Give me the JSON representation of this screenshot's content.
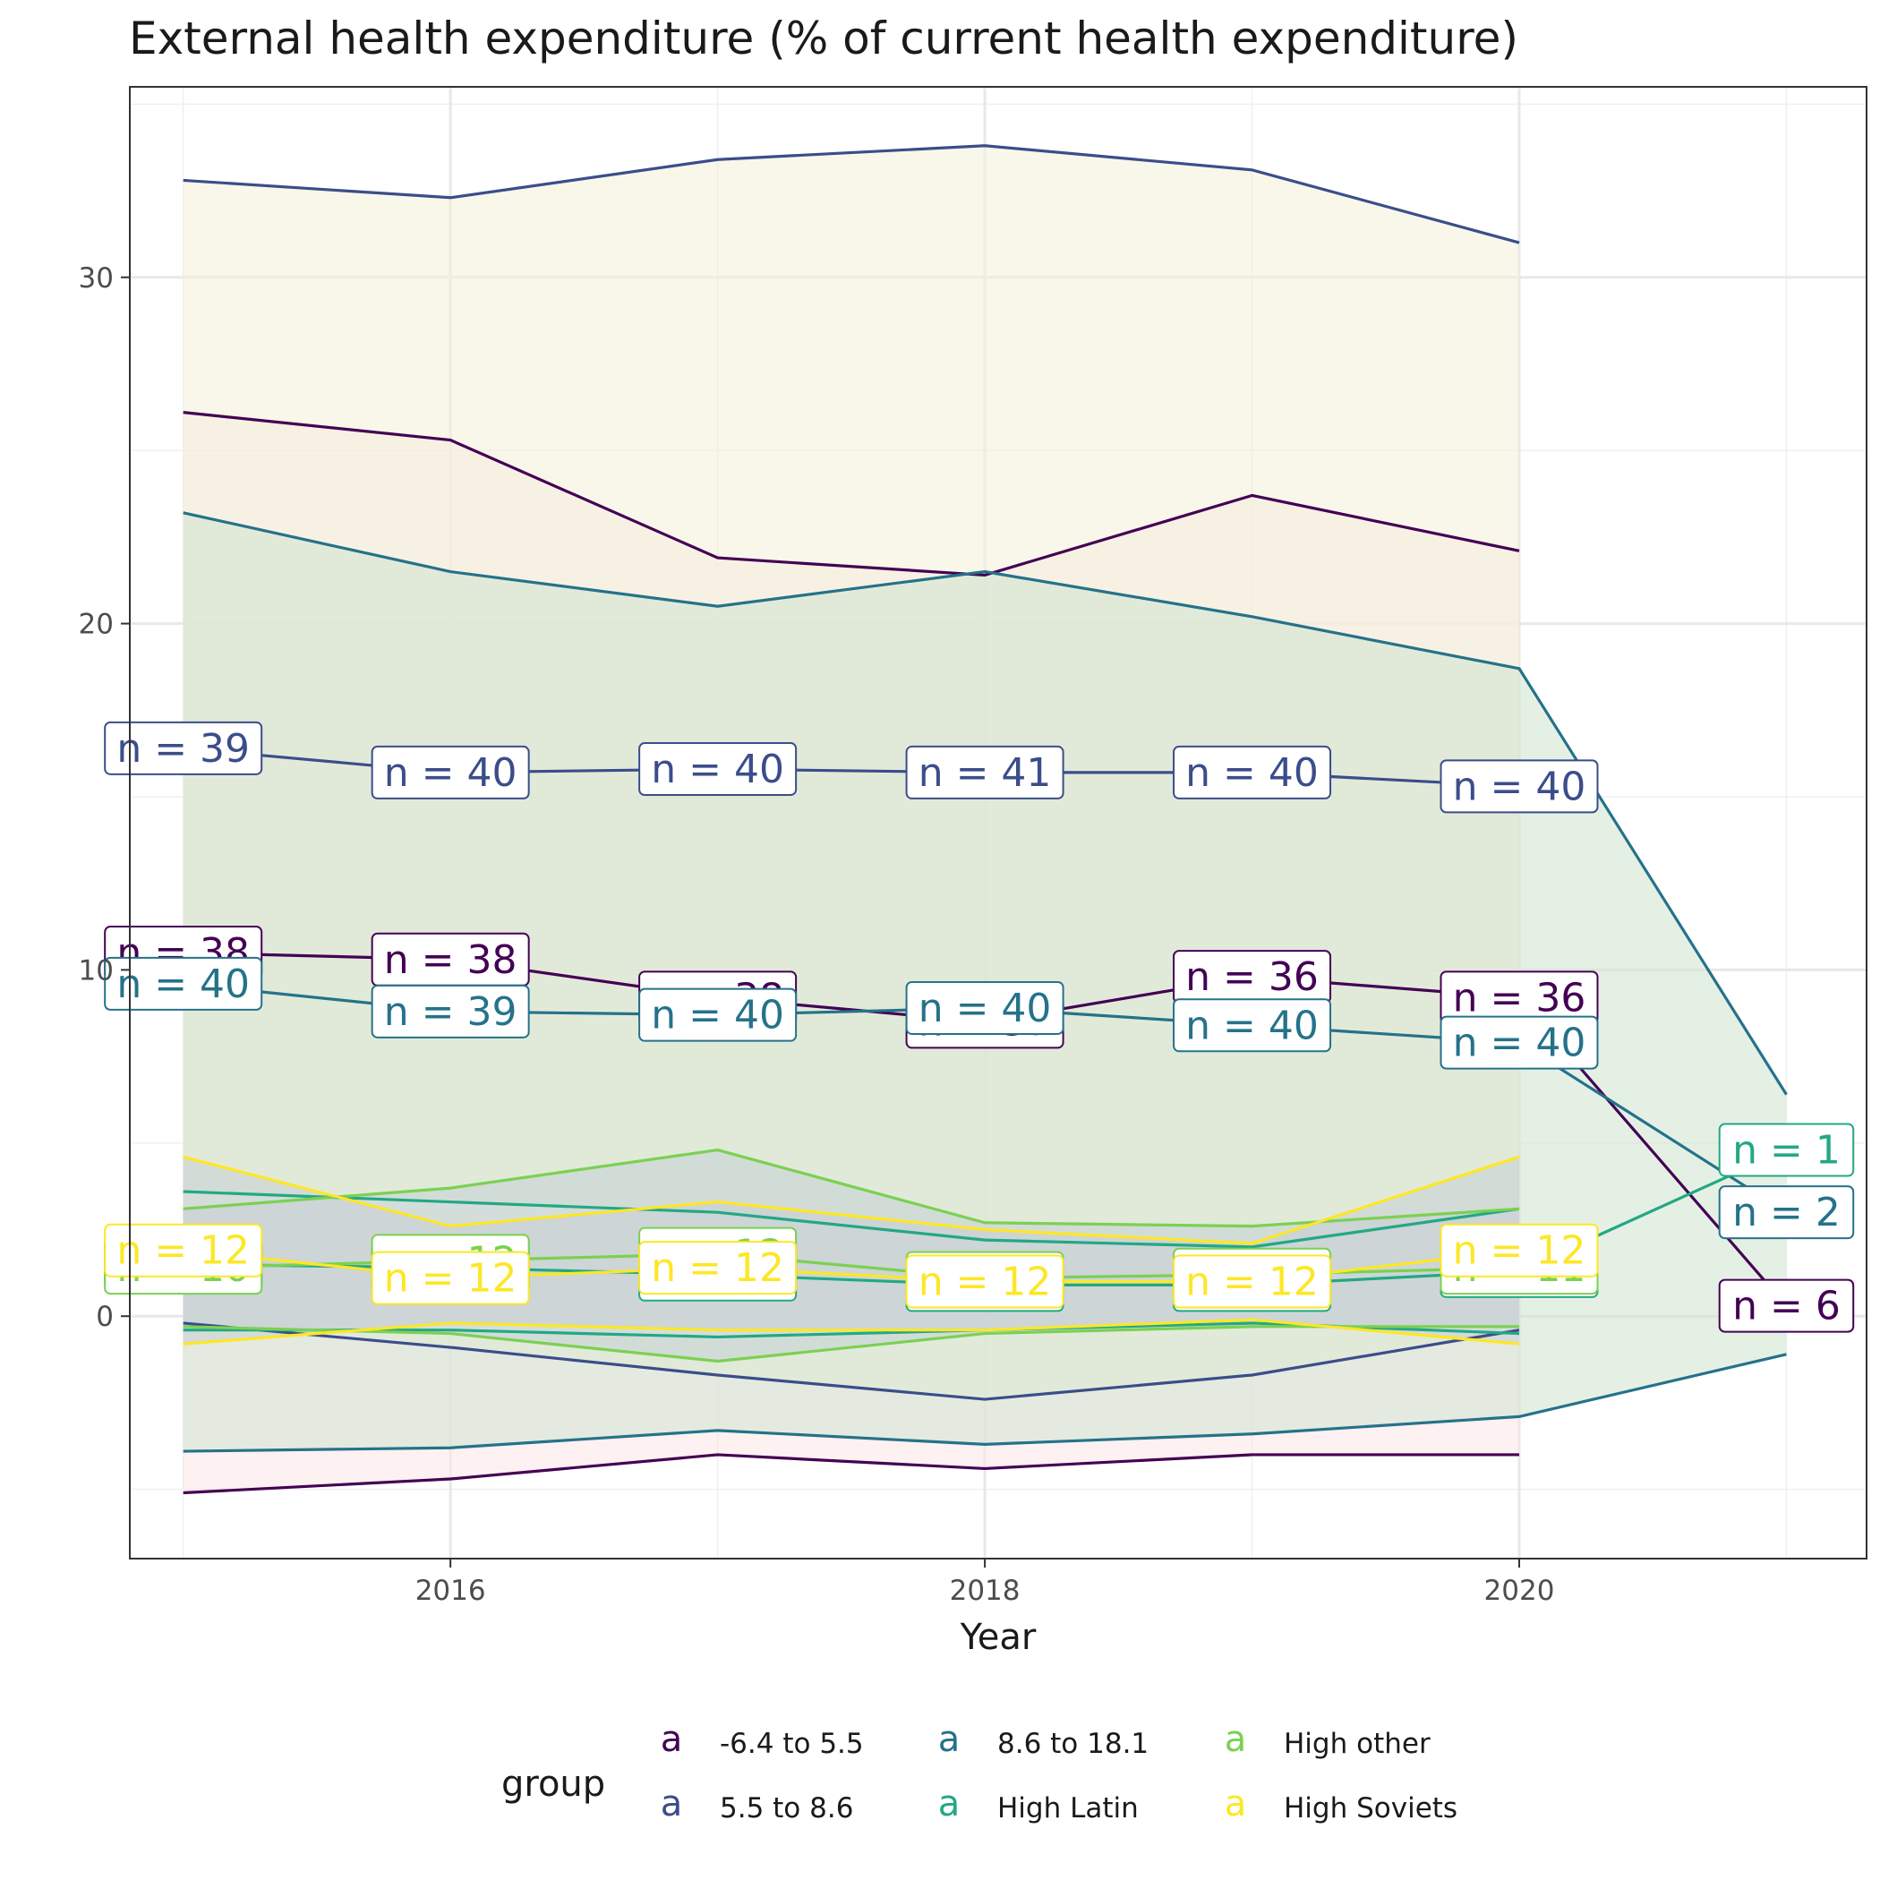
{
  "chart_data": {
    "type": "line",
    "title": "External health expenditure (% of current health expenditure)",
    "xlabel": "Year",
    "ylabel": "",
    "xlim": [
      2014.8,
      2021.3
    ],
    "ylim": [
      -7,
      35.5
    ],
    "x_ticks": [
      2016,
      2018,
      2020
    ],
    "y_ticks": [
      0,
      10,
      20,
      30
    ],
    "grid": true,
    "legend": {
      "title": "group",
      "position": "bottom",
      "key_glyph": "a"
    },
    "series": [
      {
        "name": "-6.4 to 5.5",
        "color": "#440154",
        "x": [
          2015,
          2016,
          2017,
          2018,
          2019,
          2020,
          2021
        ],
        "mean": [
          10.5,
          10.3,
          9.2,
          8.5,
          9.8,
          9.2,
          0.3
        ],
        "upper": [
          26.1,
          25.3,
          21.9,
          21.4,
          23.7,
          22.1,
          null
        ],
        "lower": [
          -5.1,
          -4.7,
          -4.0,
          -4.4,
          -4.0,
          -4.0,
          null
        ],
        "band_fill": "#fbe6e6",
        "n_labels": [
          "n = 38",
          "n = 38",
          "n = 38",
          "n = 37",
          "n = 36",
          "n = 36",
          "n = 6"
        ]
      },
      {
        "name": "5.5 to 8.6",
        "color": "#3b4d8a",
        "x": [
          2015,
          2016,
          2017,
          2018,
          2019,
          2020
        ],
        "mean": [
          16.4,
          15.7,
          15.8,
          15.7,
          15.7,
          15.3
        ],
        "upper": [
          32.8,
          32.3,
          33.4,
          33.8,
          33.1,
          31.0
        ],
        "lower": [
          -0.2,
          -0.9,
          -1.7,
          -2.4,
          -1.7,
          -0.4
        ],
        "band_fill": "#f3f0d8",
        "n_labels": [
          "n = 39",
          "n = 40",
          "n = 40",
          "n = 41",
          "n = 40",
          "n = 40"
        ]
      },
      {
        "name": "8.6 to 18.1",
        "color": "#25728a",
        "x": [
          2015,
          2016,
          2017,
          2018,
          2019,
          2020,
          2021
        ],
        "mean": [
          9.6,
          8.8,
          8.7,
          8.9,
          8.4,
          7.9,
          3.0
        ],
        "upper": [
          23.2,
          21.5,
          20.5,
          21.5,
          20.2,
          18.7,
          6.4
        ],
        "lower": [
          -3.9,
          -3.8,
          -3.3,
          -3.7,
          -3.4,
          -2.9,
          -1.1
        ],
        "band_fill": "#cfe3cf",
        "n_labels": [
          "n = 40",
          "n = 39",
          "n = 40",
          "n = 40",
          "n = 40",
          "n = 40",
          "n = 2"
        ]
      },
      {
        "name": "High Latin",
        "color": "#22a884",
        "x": [
          2015,
          2016,
          2017,
          2018,
          2019,
          2020,
          2021
        ],
        "mean": [
          1.5,
          1.4,
          1.2,
          0.9,
          0.9,
          1.3,
          4.8
        ],
        "upper": [
          3.6,
          3.3,
          3.0,
          2.2,
          2.0,
          3.1,
          null
        ],
        "lower": [
          -0.4,
          -0.4,
          -0.6,
          -0.4,
          -0.2,
          -0.5,
          null
        ],
        "band_fill": "#e3f4ea",
        "n_labels": [
          "n = 12",
          "n = 12",
          "n = 12",
          "n = 12",
          "n = 11",
          "n = 12",
          "n = 1"
        ]
      },
      {
        "name": "High other",
        "color": "#7ad151",
        "x": [
          2015,
          2016,
          2017,
          2018,
          2019,
          2020
        ],
        "mean": [
          1.4,
          1.6,
          1.8,
          1.1,
          1.2,
          1.4
        ],
        "upper": [
          3.1,
          3.7,
          4.8,
          2.7,
          2.6,
          3.1
        ],
        "lower": [
          -0.3,
          -0.5,
          -1.3,
          -0.5,
          -0.3,
          -0.3
        ],
        "band_fill": "#c6cfd6",
        "n_labels": [
          "n = 10",
          "n = 12",
          "n = 12",
          "n = 12",
          "n = 11",
          "n = 11"
        ]
      },
      {
        "name": "High Soviets",
        "color": "#fde725",
        "x": [
          2015,
          2016,
          2017,
          2018,
          2019,
          2020
        ],
        "mean": [
          1.9,
          1.1,
          1.4,
          1.0,
          1.0,
          1.9
        ],
        "upper": [
          4.6,
          2.6,
          3.3,
          2.5,
          2.1,
          4.6
        ],
        "lower": [
          -0.8,
          -0.2,
          -0.4,
          -0.4,
          -0.1,
          -0.8
        ],
        "band_fill": "#c9cdd4",
        "n_labels": [
          "n = 12",
          "n = 12",
          "n = 12",
          "n = 12",
          "n = 12",
          "n = 12"
        ]
      }
    ]
  }
}
